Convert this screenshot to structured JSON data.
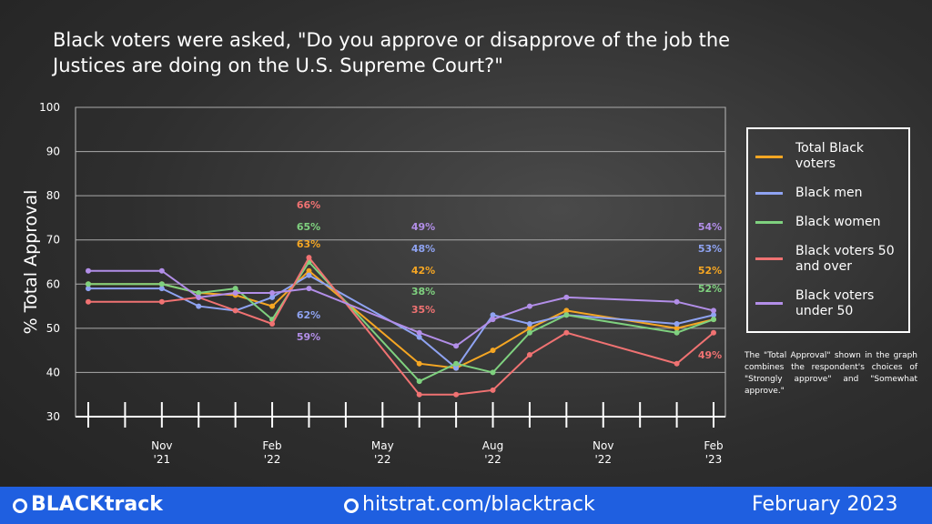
{
  "chart_data": {
    "type": "line",
    "title": "Black voters were asked, \"Do you approve or disapprove of the job the Justices are doing on the U.S. Supreme Court?\"",
    "y_label": "% Total Approval",
    "x": [
      0,
      2,
      3,
      4,
      5,
      6,
      9,
      10,
      11,
      12,
      13,
      16,
      17
    ],
    "xlim": [
      0,
      17
    ],
    "xticks": [
      {
        "value": 0
      },
      {
        "value": 1
      },
      {
        "value": 2,
        "label": [
          "Nov",
          "'21"
        ]
      },
      {
        "value": 3
      },
      {
        "value": 4
      },
      {
        "value": 5,
        "label": [
          "Feb",
          "'22"
        ]
      },
      {
        "value": 6
      },
      {
        "value": 7
      },
      {
        "value": 8,
        "label": [
          "May",
          "'22"
        ]
      },
      {
        "value": 9
      },
      {
        "value": 10
      },
      {
        "value": 11,
        "label": [
          "Aug",
          "'22"
        ]
      },
      {
        "value": 12
      },
      {
        "value": 13
      },
      {
        "value": 14,
        "label": [
          "Nov",
          "'22"
        ]
      },
      {
        "value": 15
      },
      {
        "value": 16
      },
      {
        "value": 17,
        "label": [
          "Feb",
          "'23"
        ]
      }
    ],
    "ylim": [
      30,
      100
    ],
    "yticks": [
      30,
      40,
      50,
      60,
      70,
      80,
      90,
      100
    ],
    "grid": true,
    "legend": "right",
    "series": [
      {
        "name": "Total Black voters",
        "color": "#f5a623",
        "values": [
          60,
          60,
          58,
          57.5,
          55,
          63,
          42,
          41,
          45,
          50,
          54,
          50,
          52
        ],
        "value_labels": [
          null,
          null,
          null,
          null,
          null,
          "63%",
          "42%",
          null,
          null,
          null,
          null,
          null,
          "52%"
        ]
      },
      {
        "name": "Black men",
        "color": "#8fa3f2",
        "values": [
          59,
          59,
          55,
          54,
          57,
          62,
          48,
          41,
          53,
          51,
          53,
          51,
          53
        ],
        "value_labels": [
          null,
          null,
          null,
          null,
          null,
          "62%",
          "48%",
          null,
          null,
          null,
          null,
          null,
          "53%"
        ]
      },
      {
        "name": "Black women",
        "color": "#7fd17f",
        "values": [
          60,
          60,
          58,
          59,
          52,
          65,
          38,
          42,
          40,
          49,
          53,
          49,
          52
        ],
        "value_labels": [
          null,
          null,
          null,
          null,
          null,
          "65%",
          "38%",
          null,
          null,
          null,
          null,
          null,
          "52%"
        ]
      },
      {
        "name": "Black voters 50 and over",
        "color": "#f07272",
        "values": [
          56,
          56,
          57,
          54,
          51,
          66,
          35,
          35,
          36,
          44,
          49,
          42,
          49
        ],
        "value_labels": [
          null,
          null,
          null,
          null,
          null,
          "66%",
          "35%",
          null,
          null,
          null,
          null,
          null,
          "49%"
        ]
      },
      {
        "name": "Black voters under 50",
        "color": "#b28ee8",
        "values": [
          63,
          63,
          57,
          58,
          58,
          59,
          49,
          46,
          52,
          55,
          57,
          56,
          54
        ],
        "value_labels": [
          null,
          null,
          null,
          null,
          null,
          "59%",
          "49%",
          null,
          null,
          null,
          null,
          null,
          "54%"
        ]
      }
    ],
    "note": "The \"Total Approval\" shown in the graph combines the respondent's choices of \"Strongly approve\" and \"Somewhat approve.\""
  },
  "footer": {
    "brand": "BLACKtrack",
    "url": "hitstrat.com/blacktrack",
    "date": "February 2023"
  }
}
